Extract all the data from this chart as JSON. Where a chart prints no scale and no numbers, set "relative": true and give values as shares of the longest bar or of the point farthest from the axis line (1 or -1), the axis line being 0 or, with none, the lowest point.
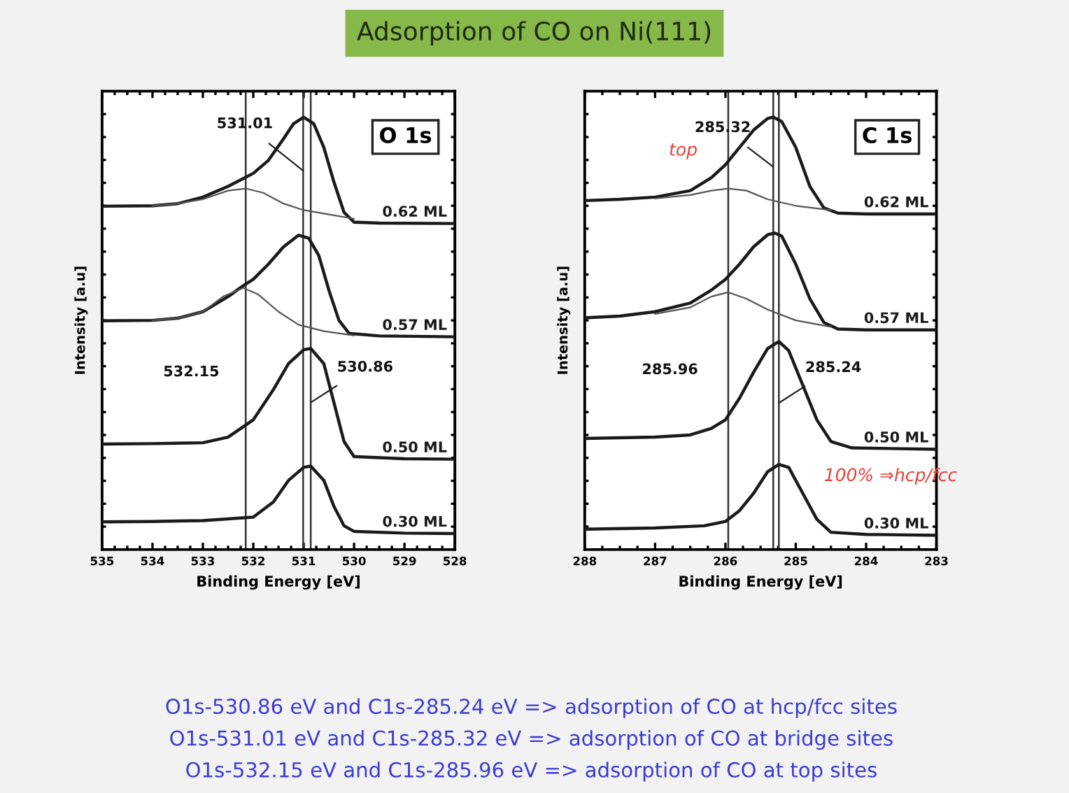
{
  "chart_data": [
    {
      "type": "line",
      "title": "O 1s",
      "xlabel": "Binding Energy [eV]",
      "ylabel": "Intensity [a.u]",
      "relative": true,
      "xlim": [
        535,
        528
      ],
      "xticks": [
        535,
        534,
        533,
        532,
        531,
        530,
        529,
        528
      ],
      "tick_labels": "x",
      "grid": false,
      "legend": false,
      "marker": "none",
      "line_style": "solid",
      "ref_lines": [
        {
          "axis": "x",
          "value": 532.15
        },
        {
          "axis": "x",
          "value": 531.01
        },
        {
          "axis": "x",
          "value": 530.86
        }
      ],
      "annotations": [
        {
          "text": "531.01",
          "x": 531.01,
          "y": 0.876
        },
        {
          "text": "532.15",
          "x": 532.15,
          "y": 0.41
        },
        {
          "text": "530.86",
          "x": 530.86,
          "y": 0.34
        }
      ],
      "series": [
        {
          "name": "0.62 ML",
          "color": "#1a1a1a",
          "x": [
            535,
            534,
            533.5,
            533,
            532.5,
            532,
            531.7,
            531.4,
            531.2,
            531.0,
            530.8,
            530.6,
            530.4,
            530.2,
            530.0,
            529.5,
            528
          ],
          "values": [
            0.794,
            0.795,
            0.8,
            0.815,
            0.84,
            0.87,
            0.9,
            0.95,
            0.985,
            1.0,
            0.985,
            0.93,
            0.85,
            0.78,
            0.757,
            0.755,
            0.754
          ]
        },
        {
          "name": "0.57 ML",
          "color": "#1a1a1a",
          "x": [
            535,
            534,
            533.5,
            533,
            532.5,
            532.2,
            532,
            531.7,
            531.4,
            531.1,
            530.9,
            530.7,
            530.5,
            530.3,
            530.1,
            529.5,
            528
          ],
          "values": [
            0.529,
            0.53,
            0.535,
            0.55,
            0.585,
            0.61,
            0.625,
            0.66,
            0.7,
            0.727,
            0.72,
            0.68,
            0.6,
            0.53,
            0.5,
            0.494,
            0.492
          ]
        },
        {
          "name": "0.50 ML",
          "color": "#1a1a1a",
          "x": [
            535,
            534,
            533,
            532.5,
            532,
            531.6,
            531.3,
            531.0,
            530.86,
            530.6,
            530.4,
            530.2,
            530,
            529,
            528
          ],
          "values": [
            0.244,
            0.245,
            0.247,
            0.26,
            0.3,
            0.37,
            0.43,
            0.462,
            0.465,
            0.43,
            0.34,
            0.25,
            0.215,
            0.21,
            0.209
          ]
        },
        {
          "name": "0.30 ML",
          "color": "#1a1a1a",
          "x": [
            535,
            534,
            533,
            532,
            531.6,
            531.3,
            531.0,
            530.86,
            530.6,
            530.4,
            530.2,
            530,
            529,
            528
          ],
          "values": [
            0.064,
            0.065,
            0.067,
            0.075,
            0.11,
            0.16,
            0.19,
            0.193,
            0.16,
            0.1,
            0.055,
            0.042,
            0.038,
            0.037
          ]
        },
        {
          "color": "#555555",
          "x": [
            534,
            533.5,
            533,
            532.5,
            532.15,
            531.8,
            531.4,
            531,
            530.5,
            530
          ],
          "values": [
            0.795,
            0.8,
            0.81,
            0.83,
            0.835,
            0.825,
            0.8,
            0.785,
            0.775,
            0.765
          ]
        },
        {
          "color": "#555555",
          "x": [
            534,
            533.5,
            533,
            532.6,
            532.2,
            531.9,
            531.5,
            531.1,
            530.6,
            530
          ],
          "values": [
            0.53,
            0.535,
            0.55,
            0.585,
            0.605,
            0.59,
            0.55,
            0.52,
            0.505,
            0.495
          ]
        }
      ]
    },
    {
      "type": "line",
      "title": "C 1s",
      "xlabel": "Binding Energy [eV]",
      "ylabel": "Intensity [a.u]",
      "relative": true,
      "xlim": [
        288,
        283
      ],
      "xticks": [
        288,
        287,
        286,
        285,
        284,
        283
      ],
      "tick_labels": "x",
      "grid": false,
      "legend": false,
      "marker": "none",
      "line_style": "solid",
      "ref_lines": [
        {
          "axis": "x",
          "value": 285.96
        },
        {
          "axis": "x",
          "value": 285.32
        },
        {
          "axis": "x",
          "value": 285.24
        }
      ],
      "annotations": [
        {
          "text": "285.32",
          "x": 285.32,
          "y": 0.885
        },
        {
          "text": "285.96",
          "x": 285.96,
          "y": 0.415
        },
        {
          "text": "285.24",
          "x": 285.24,
          "y": 0.339
        },
        "top",
        "100% ⇒hcp/fcc"
      ],
      "series": [
        {
          "name": "0.62 ML",
          "color": "#1a1a1a",
          "x": [
            288,
            287.5,
            287,
            286.5,
            286.2,
            286,
            285.8,
            285.6,
            285.4,
            285.32,
            285.2,
            285.0,
            284.8,
            284.6,
            284.4,
            284,
            283
          ],
          "values": [
            0.807,
            0.81,
            0.815,
            0.83,
            0.86,
            0.89,
            0.93,
            0.97,
            0.997,
            1.0,
            0.99,
            0.93,
            0.84,
            0.79,
            0.778,
            0.776,
            0.776
          ]
        },
        {
          "name": "0.57 ML",
          "color": "#1a1a1a",
          "x": [
            288,
            287.5,
            287,
            286.5,
            286.2,
            286,
            285.8,
            285.6,
            285.4,
            285.3,
            285.2,
            285.0,
            284.8,
            284.6,
            284.4,
            284,
            283
          ],
          "values": [
            0.536,
            0.54,
            0.55,
            0.57,
            0.6,
            0.625,
            0.66,
            0.7,
            0.728,
            0.732,
            0.725,
            0.66,
            0.58,
            0.525,
            0.51,
            0.508,
            0.508
          ]
        },
        {
          "name": "0.50 ML",
          "color": "#1a1a1a",
          "x": [
            288,
            287,
            286.5,
            286.2,
            286,
            285.8,
            285.6,
            285.4,
            285.24,
            285.1,
            284.9,
            284.7,
            284.5,
            284.2,
            283
          ],
          "values": [
            0.257,
            0.26,
            0.265,
            0.28,
            0.3,
            0.35,
            0.41,
            0.465,
            0.481,
            0.46,
            0.38,
            0.3,
            0.25,
            0.235,
            0.232
          ]
        },
        {
          "name": "0.30 ML",
          "color": "#1a1a1a",
          "x": [
            288,
            287,
            286.3,
            286,
            285.8,
            285.6,
            285.4,
            285.24,
            285.1,
            284.9,
            284.7,
            284.5,
            284,
            283
          ],
          "values": [
            0.047,
            0.05,
            0.055,
            0.065,
            0.09,
            0.13,
            0.18,
            0.197,
            0.19,
            0.13,
            0.07,
            0.04,
            0.035,
            0.033
          ]
        },
        {
          "color": "#555555",
          "x": [
            287,
            286.5,
            286.2,
            285.96,
            285.7,
            285.4,
            285,
            284.5
          ],
          "values": [
            0.812,
            0.82,
            0.83,
            0.835,
            0.83,
            0.81,
            0.795,
            0.785
          ]
        },
        {
          "color": "#555555",
          "x": [
            287,
            286.5,
            286.2,
            285.96,
            285.7,
            285.4,
            285,
            284.5
          ],
          "values": [
            0.545,
            0.56,
            0.585,
            0.595,
            0.58,
            0.555,
            0.53,
            0.515
          ]
        }
      ]
    },
    {
      "type": "other",
      "title": "Adsorption of CO on Ni(111)",
      "annotations": [
        "O1s-530.86 eV and C1s-285.24 eV => adsorption of CO at hcp/fcc sites",
        "O1s-531.01 eV and C1s-285.32 eV => adsorption of CO at bridge sites",
        "O1s-532.15 eV and C1s-285.96 eV => adsorption of CO at top sites"
      ]
    }
  ]
}
